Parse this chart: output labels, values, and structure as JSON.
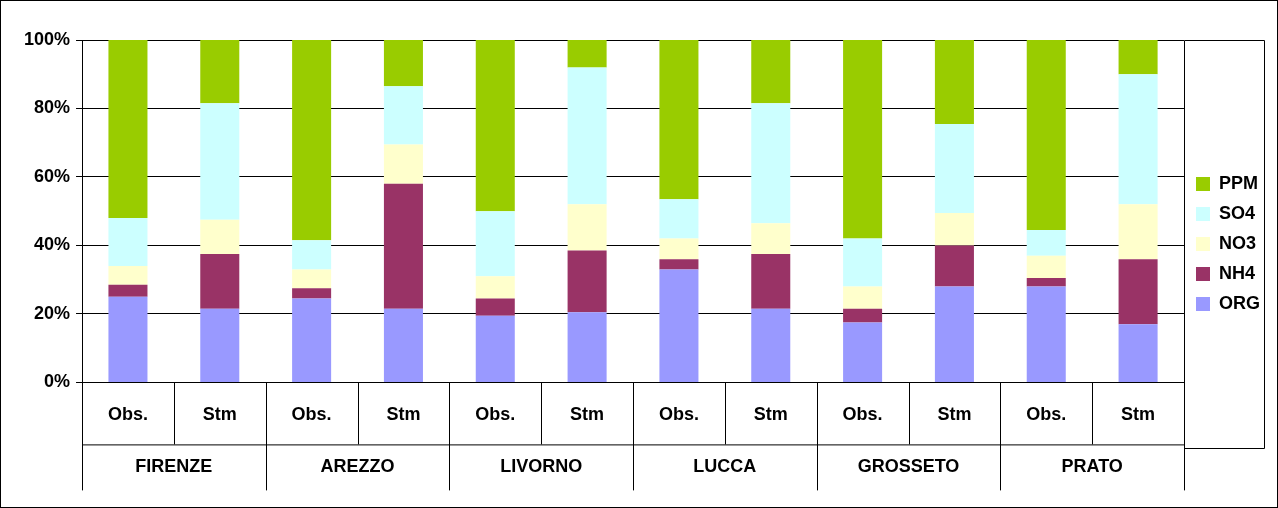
{
  "chart_data": {
    "type": "bar",
    "stacked": true,
    "categories": [
      "Obs.",
      "Stm",
      "Obs.",
      "Stm",
      "Obs.",
      "Stm",
      "Obs.",
      "Stm",
      "Obs.",
      "Stm",
      "Obs.",
      "Stm"
    ],
    "annotations": [
      "FIRENZE",
      "AREZZO",
      "LIVORNO",
      "LUCCA",
      "GROSSETO",
      "PRATO"
    ],
    "series": [
      {
        "name": "ORG",
        "color": "#9999ff",
        "values": [
          25,
          21.5,
          24.5,
          21.5,
          19.5,
          20.5,
          33,
          21.5,
          17.5,
          28,
          28,
          17
        ]
      },
      {
        "name": "NH4",
        "color": "#993366",
        "values": [
          3.5,
          16,
          3,
          36.5,
          5,
          18,
          3,
          16,
          4,
          12,
          2.5,
          19
        ]
      },
      {
        "name": "NO3",
        "color": "#ffffcc",
        "values": [
          5.5,
          10,
          5.5,
          11.5,
          6.5,
          13.5,
          6,
          9,
          6.5,
          9.5,
          6.5,
          16
        ]
      },
      {
        "name": "SO4",
        "color": "#ccffff",
        "values": [
          14,
          34,
          8.5,
          17,
          19,
          40,
          11.5,
          35,
          14,
          26,
          7.5,
          38
        ]
      },
      {
        "name": "PPM",
        "color": "#99cc00",
        "values": [
          52,
          18.5,
          58.5,
          13.5,
          50,
          8,
          46.5,
          18.5,
          58,
          24.5,
          55.5,
          10
        ]
      }
    ],
    "ylim": [
      0,
      100
    ],
    "yticks": [
      {
        "value": 0,
        "label": "0%"
      },
      {
        "value": 20,
        "label": "20%"
      },
      {
        "value": 40,
        "label": "40%"
      },
      {
        "value": 60,
        "label": "60%"
      },
      {
        "value": 80,
        "label": "80%"
      },
      {
        "value": 100,
        "label": "100%"
      }
    ],
    "grid": "y",
    "legend": "right"
  }
}
